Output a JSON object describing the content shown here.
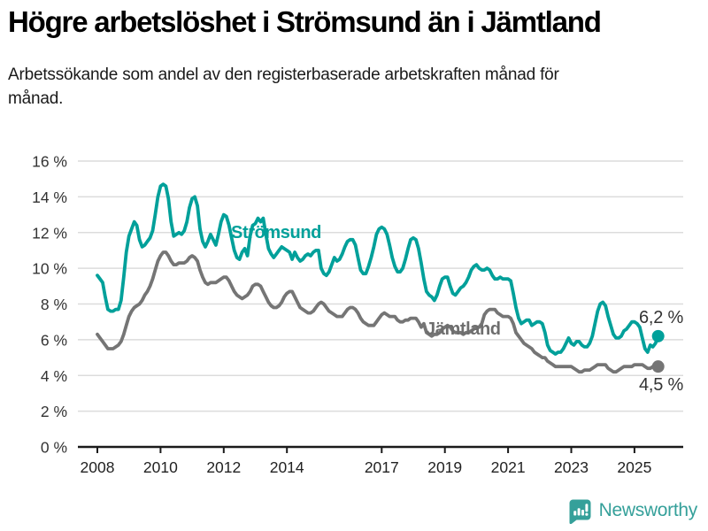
{
  "header": {
    "title": "Högre arbetslöshet i Strömsund än i Jämtland",
    "subtitle": "Arbetssökande som andel av den registerbaserade arbetskraften månad för månad."
  },
  "chart_data": {
    "type": "line",
    "title": "Högre arbetslöshet i Strömsund än i Jämtland",
    "x_unit": "month",
    "x_start": "2008-01",
    "x_end": "2025-10",
    "ylim": [
      0,
      16
    ],
    "grid": "horizontal",
    "legend_position": "inline-labels",
    "y_axis": {
      "tick_values": [
        0,
        2,
        4,
        6,
        8,
        10,
        12,
        14,
        16
      ],
      "tick_labels": [
        "0 %",
        "2 %",
        "4 %",
        "6 %",
        "8 %",
        "10 %",
        "12 %",
        "14 %",
        "16 %"
      ]
    },
    "x_axis": {
      "tick_values": [
        2008,
        2010,
        2012,
        2014,
        2017,
        2019,
        2021,
        2023,
        2025
      ],
      "tick_labels": [
        "2008",
        "2010",
        "2012",
        "2014",
        "2017",
        "2019",
        "2021",
        "2023",
        "2025"
      ]
    },
    "series": [
      {
        "name": "Strömsund",
        "color": "#00a09a",
        "end_label": "6,2 %",
        "end_value": 6.2,
        "values": [
          9.6,
          9.4,
          9.2,
          8.4,
          7.7,
          7.6,
          7.6,
          7.7,
          7.7,
          8.2,
          9.5,
          10.9,
          11.8,
          12.2,
          12.6,
          12.4,
          11.6,
          11.2,
          11.3,
          11.5,
          11.7,
          12.1,
          13.0,
          14.0,
          14.6,
          14.7,
          14.6,
          13.9,
          12.6,
          11.8,
          11.9,
          12.0,
          11.9,
          12.1,
          12.6,
          13.4,
          13.9,
          14.0,
          13.5,
          12.2,
          11.5,
          11.2,
          11.5,
          11.9,
          11.6,
          11.3,
          11.9,
          12.6,
          13.0,
          12.9,
          12.4,
          11.7,
          11.0,
          10.6,
          10.5,
          10.9,
          11.1,
          10.7,
          11.8,
          12.4,
          12.5,
          12.8,
          12.6,
          12.8,
          11.9,
          11.1,
          10.8,
          10.6,
          10.8,
          11.0,
          11.2,
          11.1,
          11.0,
          10.9,
          10.5,
          10.9,
          10.6,
          10.4,
          10.5,
          10.7,
          10.8,
          10.7,
          10.9,
          11.0,
          11.0,
          10.0,
          9.7,
          9.6,
          9.8,
          10.2,
          10.6,
          10.4,
          10.5,
          10.8,
          11.2,
          11.5,
          11.6,
          11.6,
          11.3,
          10.6,
          9.9,
          9.7,
          9.7,
          10.1,
          10.6,
          11.2,
          11.9,
          12.2,
          12.3,
          12.2,
          11.9,
          11.3,
          10.6,
          10.1,
          9.8,
          9.8,
          10.0,
          10.5,
          11.1,
          11.6,
          11.7,
          11.6,
          11.1,
          10.3,
          9.4,
          8.7,
          8.5,
          8.4,
          8.2,
          8.5,
          9.0,
          9.4,
          9.5,
          9.5,
          9.0,
          8.6,
          8.5,
          8.7,
          8.9,
          9.0,
          9.2,
          9.5,
          9.9,
          10.1,
          10.2,
          10.0,
          9.9,
          9.9,
          10.0,
          9.9,
          9.6,
          9.4,
          9.4,
          9.5,
          9.4,
          9.4,
          9.4,
          9.3,
          8.6,
          7.8,
          7.2,
          6.9,
          7.0,
          7.1,
          7.1,
          6.8,
          6.9,
          7.0,
          7.0,
          6.9,
          6.4,
          5.7,
          5.4,
          5.3,
          5.2,
          5.3,
          5.3,
          5.5,
          5.8,
          6.1,
          5.8,
          5.7,
          5.9,
          5.9,
          5.7,
          5.6,
          5.6,
          5.8,
          6.2,
          6.9,
          7.6,
          8.0,
          8.1,
          7.9,
          7.3,
          6.8,
          6.3,
          6.1,
          6.1,
          6.2,
          6.5,
          6.6,
          6.8,
          7.0,
          7.0,
          6.9,
          6.7,
          6.1,
          5.5,
          5.3,
          5.7,
          5.6,
          5.8,
          6.2
        ]
      },
      {
        "name": "Jämtland",
        "color": "#757575",
        "end_label": "4,5 %",
        "end_value": 4.5,
        "values": [
          6.3,
          6.1,
          5.9,
          5.7,
          5.5,
          5.5,
          5.5,
          5.6,
          5.7,
          5.9,
          6.3,
          6.8,
          7.3,
          7.6,
          7.8,
          7.9,
          8.0,
          8.2,
          8.5,
          8.7,
          9.0,
          9.4,
          9.9,
          10.4,
          10.7,
          10.9,
          10.9,
          10.7,
          10.4,
          10.2,
          10.2,
          10.3,
          10.3,
          10.3,
          10.4,
          10.6,
          10.7,
          10.6,
          10.4,
          9.9,
          9.5,
          9.2,
          9.1,
          9.2,
          9.2,
          9.2,
          9.3,
          9.4,
          9.5,
          9.5,
          9.3,
          9.0,
          8.7,
          8.5,
          8.4,
          8.3,
          8.4,
          8.5,
          8.7,
          9.0,
          9.1,
          9.1,
          9.0,
          8.7,
          8.4,
          8.1,
          7.9,
          7.8,
          7.8,
          7.9,
          8.1,
          8.4,
          8.6,
          8.7,
          8.7,
          8.4,
          8.1,
          7.8,
          7.7,
          7.6,
          7.5,
          7.5,
          7.6,
          7.8,
          8.0,
          8.1,
          8.0,
          7.8,
          7.6,
          7.5,
          7.4,
          7.3,
          7.3,
          7.3,
          7.5,
          7.7,
          7.8,
          7.8,
          7.7,
          7.5,
          7.2,
          7.0,
          6.9,
          6.8,
          6.8,
          6.8,
          7.0,
          7.2,
          7.4,
          7.5,
          7.4,
          7.3,
          7.3,
          7.3,
          7.1,
          7.0,
          7.0,
          7.1,
          7.1,
          7.2,
          7.2,
          7.2,
          7.0,
          6.7,
          6.9,
          6.4,
          6.3,
          6.2,
          6.3,
          6.3,
          6.4,
          6.6,
          6.7,
          6.8,
          6.7,
          6.5,
          6.4,
          6.4,
          6.4,
          6.3,
          6.4,
          6.4,
          6.5,
          6.6,
          6.7,
          6.7,
          6.9,
          7.4,
          7.6,
          7.7,
          7.7,
          7.7,
          7.5,
          7.4,
          7.3,
          7.3,
          7.3,
          7.2,
          6.9,
          6.4,
          6.2,
          6.0,
          5.8,
          5.7,
          5.6,
          5.5,
          5.3,
          5.2,
          5.1,
          5.0,
          5.0,
          4.8,
          4.7,
          4.6,
          4.5,
          4.5,
          4.5,
          4.5,
          4.5,
          4.5,
          4.5,
          4.4,
          4.3,
          4.2,
          4.2,
          4.3,
          4.3,
          4.3,
          4.4,
          4.5,
          4.6,
          4.6,
          4.6,
          4.6,
          4.4,
          4.3,
          4.2,
          4.2,
          4.3,
          4.4,
          4.5,
          4.5,
          4.5,
          4.5,
          4.6,
          4.6,
          4.6,
          4.6,
          4.5,
          4.4,
          4.4,
          4.5,
          4.5,
          4.5
        ]
      }
    ]
  },
  "footer": {
    "brand": "Newsworthy",
    "brand_color": "#35a09a",
    "logo_icon": "bar-chart-speech-bubble"
  }
}
